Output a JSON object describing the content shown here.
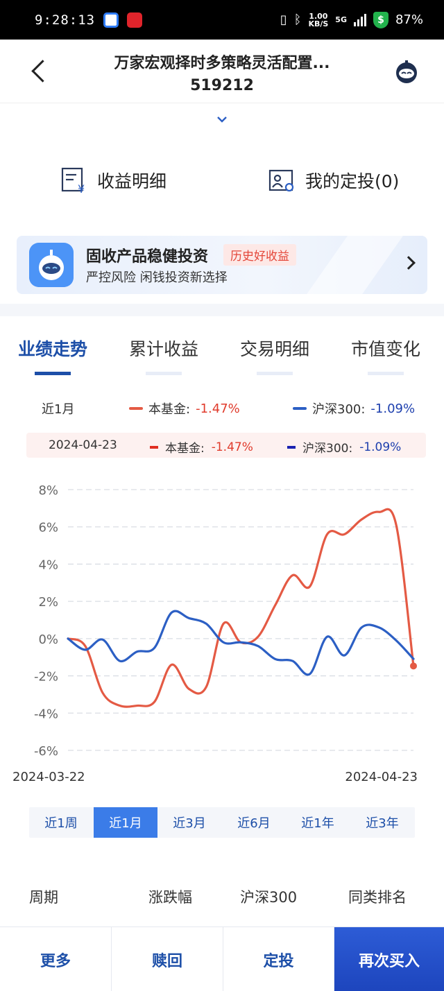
{
  "status_bar": {
    "time": "9:28:13",
    "net_speed_top": "1.00",
    "net_speed_bottom": "KB/S",
    "network": "5G",
    "battery": "87%"
  },
  "header": {
    "fund_name": "万家宏观择时多策略灵活配置...",
    "fund_code": "519212"
  },
  "quick_actions": [
    {
      "label": "收益明细",
      "icon": "receipt-yen-icon"
    },
    {
      "label": "我的定投(0)",
      "icon": "person-card-icon"
    }
  ],
  "banner": {
    "title": "固收产品稳健投资",
    "tag": "历史好收益",
    "subtitle": "严控风险 闲钱投资新选择"
  },
  "tabs": [
    {
      "label": "业绩走势",
      "active": true
    },
    {
      "label": "累计收益",
      "active": false
    },
    {
      "label": "交易明细",
      "active": false
    },
    {
      "label": "市值变化",
      "active": false
    }
  ],
  "legend": {
    "period": "近1月",
    "fund_label": "本基金:",
    "fund_value": "-1.47%",
    "index_label": "沪深300:",
    "index_value": "-1.09%"
  },
  "tooltip": {
    "date": "2024-04-23",
    "fund_label": "本基金:",
    "fund_value": "-1.47%",
    "index_label": "沪深300:",
    "index_value": "-1.09%"
  },
  "colors": {
    "fund": "#e45a44",
    "index": "#2c5fc4",
    "accent": "#1d4fa8"
  },
  "chart_data": {
    "type": "line",
    "yticks": [
      "8%",
      "6%",
      "4%",
      "2%",
      "0%",
      "-2%",
      "-4%",
      "-6%"
    ],
    "ylim": [
      -6,
      8
    ],
    "x_start_label": "2024-03-22",
    "x_end_label": "2024-04-23",
    "x": [
      "2024-03-22",
      "2024-03-25",
      "2024-03-26",
      "2024-03-27",
      "2024-03-28",
      "2024-03-29",
      "2024-04-01",
      "2024-04-02",
      "2024-04-03",
      "2024-04-08",
      "2024-04-09",
      "2024-04-10",
      "2024-04-11",
      "2024-04-12",
      "2024-04-15",
      "2024-04-16",
      "2024-04-17",
      "2024-04-18",
      "2024-04-19",
      "2024-04-22",
      "2024-04-23"
    ],
    "series": [
      {
        "name": "本基金",
        "values": [
          0.0,
          -0.4,
          -2.9,
          -3.6,
          -3.6,
          -3.4,
          -1.4,
          -2.7,
          -2.6,
          0.8,
          -0.2,
          0.1,
          1.8,
          3.4,
          2.8,
          5.6,
          5.6,
          6.4,
          6.8,
          6.1,
          -1.47
        ]
      },
      {
        "name": "沪深300",
        "values": [
          0.0,
          -0.6,
          -0.05,
          -1.2,
          -0.7,
          -0.5,
          1.4,
          1.1,
          0.8,
          -0.2,
          -0.2,
          -0.4,
          -1.1,
          -1.2,
          -1.9,
          0.1,
          -0.9,
          0.6,
          0.6,
          -0.1,
          -1.09
        ]
      }
    ]
  },
  "period_buttons": [
    {
      "label": "近1周",
      "active": false
    },
    {
      "label": "近1月",
      "active": true
    },
    {
      "label": "近3月",
      "active": false
    },
    {
      "label": "近6月",
      "active": false
    },
    {
      "label": "近1年",
      "active": false
    },
    {
      "label": "近3年",
      "active": false
    }
  ],
  "table_headers": [
    "周期",
    "涨跌幅",
    "沪深300",
    "同类排名"
  ],
  "bottom_buttons": [
    {
      "label": "更多"
    },
    {
      "label": "赎回"
    },
    {
      "label": "定投"
    },
    {
      "label": "再次买入"
    }
  ]
}
